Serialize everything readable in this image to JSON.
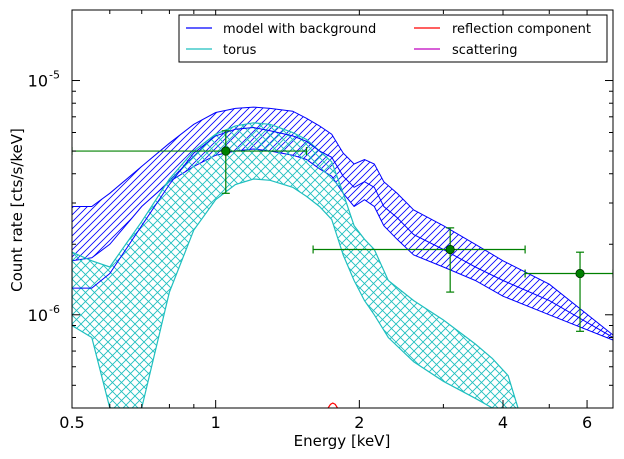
{
  "chart_data": {
    "type": "line",
    "xlabel": "Energy [keV]",
    "ylabel": "Count rate [cts/s/keV]",
    "xscale": "log",
    "yscale": "log",
    "xlim": [
      0.5,
      6.8
    ],
    "ylim": [
      4e-07,
      2e-05
    ],
    "xticks": [
      {
        "value": 0.5,
        "label": "0.5"
      },
      {
        "value": 1,
        "label": "1"
      },
      {
        "value": 2,
        "label": "2"
      },
      {
        "value": 4,
        "label": "4"
      },
      {
        "value": 6,
        "label": "6"
      }
    ],
    "yticks": [
      {
        "value": 1e-06,
        "base": "10",
        "exp": "-6"
      },
      {
        "value": 1e-05,
        "base": "10",
        "exp": "-5"
      }
    ],
    "legend_position": "top-right",
    "legend": [
      {
        "label": "model with background",
        "color": "#0000ff"
      },
      {
        "label": "reflection component",
        "color": "#ff0000"
      },
      {
        "label": "torus",
        "color": "#1fbfbf"
      },
      {
        "label": "scattering",
        "color": "#bf00bf"
      }
    ],
    "colors": {
      "model": "#0000ff",
      "torus": "#1fbfbf",
      "reflection": "#ff0000",
      "scattering": "#bf00bf",
      "data": "#008000"
    },
    "model_band": {
      "x": [
        0.5,
        0.55,
        0.6,
        0.7,
        0.8,
        0.9,
        1.0,
        1.1,
        1.2,
        1.3,
        1.45,
        1.55,
        1.65,
        1.75,
        1.85,
        1.95,
        2.05,
        2.15,
        2.25,
        2.4,
        2.6,
        3.0,
        3.5,
        4.0,
        5.0,
        6.8
      ],
      "upper": [
        2.9e-06,
        2.9e-06,
        3.3e-06,
        4.3e-06,
        5.4e-06,
        6.5e-06,
        7.3e-06,
        7.6e-06,
        7.7e-06,
        7.6e-06,
        7.4e-06,
        6.9e-06,
        6.4e-06,
        5.9e-06,
        4.9e-06,
        4.4e-06,
        4.6e-06,
        4.4e-06,
        3.7e-06,
        3.3e-06,
        2.8e-06,
        2.4e-06,
        2e-06,
        1.7e-06,
        1.35e-06,
        8.2e-07
      ],
      "lower": [
        1.7e-06,
        1.75e-06,
        2e-06,
        2.9e-06,
        3.7e-06,
        4.3e-06,
        4.8e-06,
        5e-06,
        5.1e-06,
        5e-06,
        4.8e-06,
        4.6e-06,
        4.2e-06,
        3.9e-06,
        3.3e-06,
        2.9e-06,
        3.1e-06,
        2.9e-06,
        2.4e-06,
        2.1e-06,
        1.8e-06,
        1.6e-06,
        1.4e-06,
        1.2e-06,
        1e-06,
        7.8e-07
      ],
      "mid": [
        1.3e-06,
        1.3e-06,
        1.5e-06,
        2.4e-06,
        3.6e-06,
        4.9e-06,
        5.8e-06,
        6.2e-06,
        6.3e-06,
        6.1e-06,
        5.8e-06,
        5.5e-06,
        5e-06,
        4.7e-06,
        3.9e-06,
        3.5e-06,
        3.7e-06,
        3.5e-06,
        2.9e-06,
        2.6e-06,
        2.2e-06,
        1.9e-06,
        1.6e-06,
        1.4e-06,
        1.15e-06,
        8e-07
      ]
    },
    "torus_band": {
      "x": [
        0.5,
        0.55,
        0.6,
        0.7,
        0.8,
        0.9,
        1.0,
        1.1,
        1.2,
        1.3,
        1.45,
        1.55,
        1.65,
        1.75,
        1.85,
        1.95,
        2.05,
        2.15,
        2.3,
        2.6,
        3.0,
        3.5,
        3.8,
        4.1,
        4.3
      ],
      "upper": [
        1.85e-06,
        1.7e-06,
        1.6e-06,
        2.5e-06,
        3.8e-06,
        5e-06,
        5.9e-06,
        6.4e-06,
        6.6e-06,
        6.5e-06,
        6e-06,
        5.6e-06,
        5e-06,
        4.5e-06,
        3.3e-06,
        2.4e-06,
        2.1e-06,
        1.9e-06,
        1.4e-06,
        1.15e-06,
        9.5e-07,
        7.5e-07,
        6.5e-07,
        5.5e-07,
        4e-07
      ],
      "lower": [
        9e-07,
        8e-07,
        4e-07,
        4e-07,
        1.25e-06,
        2.3e-06,
        3.1e-06,
        3.6e-06,
        3.8e-06,
        3.75e-06,
        3.5e-06,
        3.2e-06,
        2.9e-06,
        2.55e-06,
        1.8e-06,
        1.4e-06,
        1.15e-06,
        1e-06,
        8e-07,
        6.3e-07,
        5.2e-07,
        4.4e-07,
        4e-07,
        4e-07,
        4e-07
      ]
    },
    "data_points": [
      {
        "x": 1.05,
        "y": 5e-06,
        "xlo": 0.5,
        "xhi": 1.55,
        "ylo": 3.3e-06,
        "yhi": 6.1e-06
      },
      {
        "x": 3.1,
        "y": 1.9e-06,
        "xlo": 1.6,
        "xhi": 4.45,
        "ylo": 1.25e-06,
        "yhi": 2.35e-06
      },
      {
        "x": 5.8,
        "y": 1.5e-06,
        "xlo": 4.45,
        "xhi": 6.8,
        "ylo": 8.5e-07,
        "yhi": 1.85e-06
      }
    ],
    "reflection_bump": {
      "x": [
        1.72,
        1.74,
        1.76,
        1.78,
        1.8
      ],
      "y": [
        4e-07,
        4.15e-07,
        4.2e-07,
        4.15e-07,
        4e-07
      ]
    }
  }
}
